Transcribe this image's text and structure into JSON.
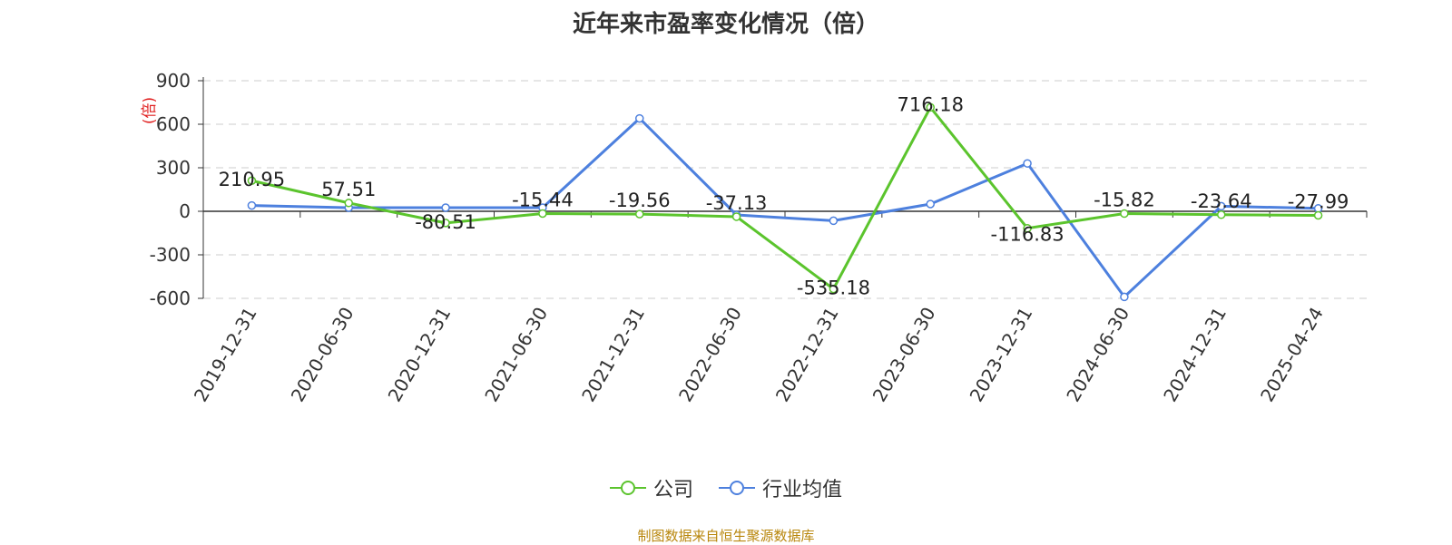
{
  "chart_data": {
    "type": "line",
    "title": "近年来市盈率变化情况（倍）",
    "ylabel": "(倍)",
    "ylim": [
      -600,
      900
    ],
    "yticks": [
      -600,
      -300,
      0,
      300,
      600,
      900
    ],
    "grid": true,
    "legend_position": "bottom",
    "categories": [
      "2019-12-31",
      "2020-06-30",
      "2020-12-31",
      "2021-06-30",
      "2021-12-31",
      "2022-06-30",
      "2022-12-31",
      "2023-06-30",
      "2023-12-31",
      "2024-06-30",
      "2024-12-31",
      "2025-04-24"
    ],
    "series": [
      {
        "name": "公司",
        "color": "#5bc42d",
        "values": [
          210.95,
          57.51,
          -80.51,
          -15.44,
          -19.56,
          -37.13,
          -535.18,
          716.18,
          -116.83,
          -15.82,
          -23.64,
          -27.99
        ],
        "labels": [
          "210.95",
          "57.51",
          "-80.51",
          "-15.44",
          "-19.56",
          "-37.13",
          "-535.18",
          "716.18",
          "-116.83",
          "-15.82",
          "-23.64",
          "-27.99"
        ]
      },
      {
        "name": "行业均值",
        "color": "#4d80de",
        "values": [
          40,
          25,
          25,
          25,
          640,
          -25,
          -65,
          50,
          330,
          -590,
          35,
          20
        ]
      }
    ]
  },
  "legend": {
    "company": "公司",
    "industry": "行业均值"
  },
  "source_note": "制图数据来自恒生聚源数据库"
}
